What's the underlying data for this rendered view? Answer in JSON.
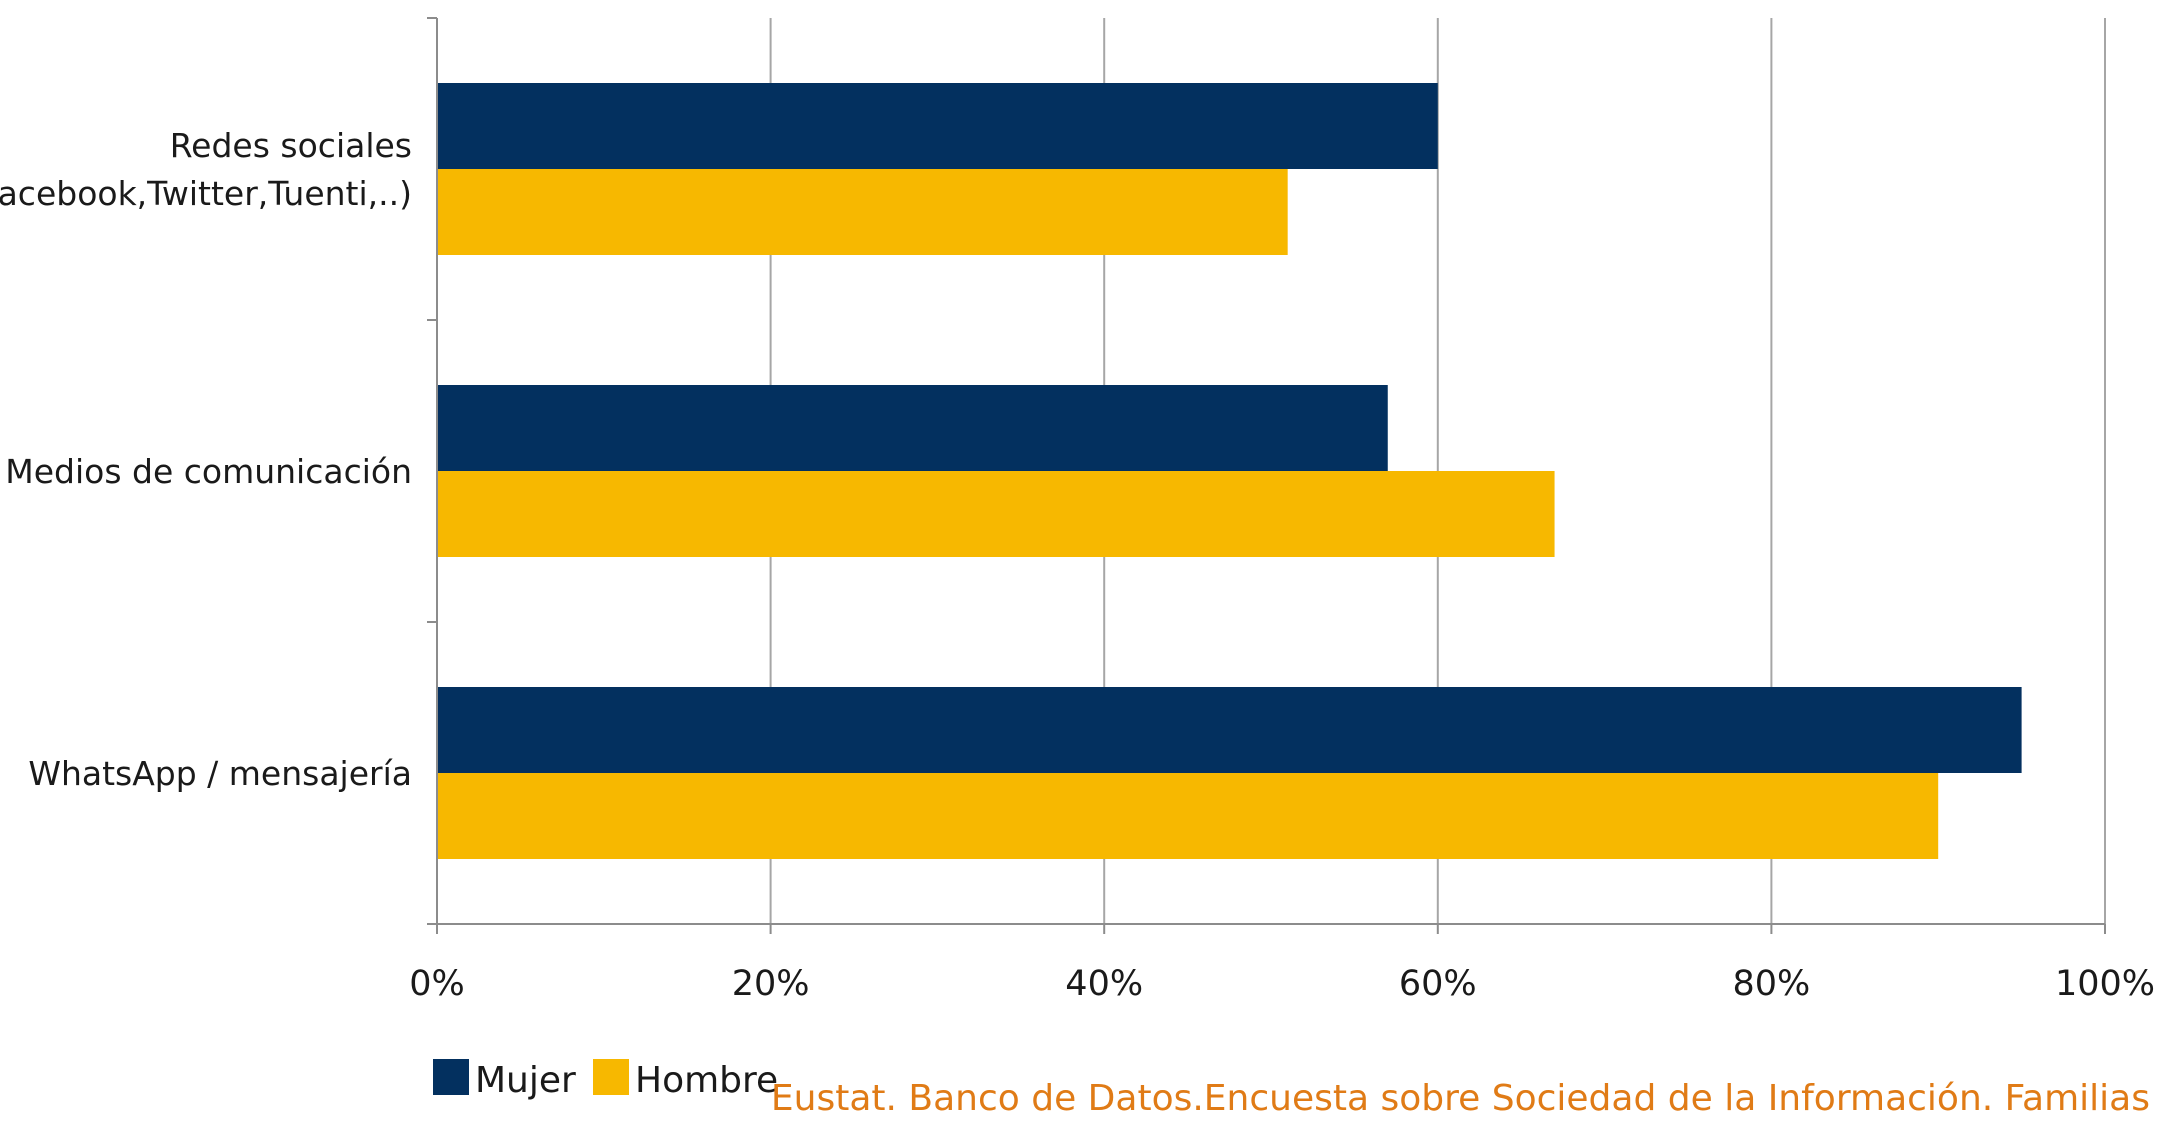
{
  "chart_data": {
    "type": "bar",
    "orientation": "horizontal",
    "categories": [
      [
        "Redes sociales",
        "(Facebook,Twitter,Tuenti,..)"
      ],
      [
        "Medios de comunicación"
      ],
      [
        "WhatsApp / mensajería"
      ]
    ],
    "series": [
      {
        "name": "Mujer",
        "color": "#03305f",
        "values": [
          60,
          57,
          95
        ]
      },
      {
        "name": "Hombre",
        "color": "#f7b800",
        "values": [
          51,
          67,
          90
        ]
      }
    ],
    "xlim": [
      0,
      100
    ],
    "xticks": [
      0,
      20,
      40,
      60,
      80,
      100
    ],
    "xtick_labels": [
      "0%",
      "20%",
      "40%",
      "60%",
      "80%",
      "100%"
    ],
    "grid": "vertical",
    "legend": "bottom-left",
    "title": "",
    "xlabel": "",
    "ylabel": ""
  },
  "source": {
    "text": "Eustat. Banco de Datos.Encuesta sobre Sociedad de la Información. Familias",
    "color": "#e07b16"
  }
}
